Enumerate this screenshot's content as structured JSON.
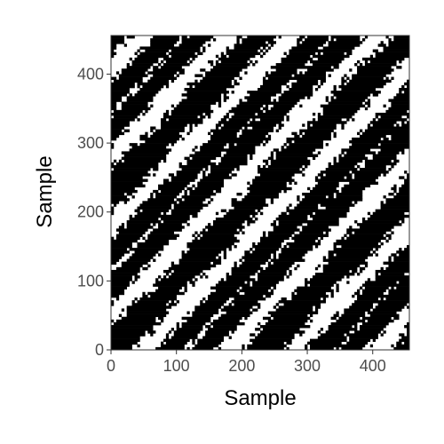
{
  "chart_data": {
    "type": "heatmap",
    "title": "",
    "xlabel": "Sample",
    "ylabel": "Sample",
    "xlim": [
      0,
      456
    ],
    "ylim": [
      0,
      456
    ],
    "xticks": [
      0,
      100,
      200,
      300,
      400
    ],
    "yticks": [
      0,
      100,
      200,
      300,
      400
    ],
    "xtick_labels": [
      "0",
      "100",
      "200",
      "300",
      "400"
    ],
    "ytick_labels": [
      "0",
      "100",
      "200",
      "300",
      "400"
    ],
    "value_colors": {
      "0": "#ffffff",
      "1": "#000000"
    },
    "description_of_structure": "binary recurrence plot, symmetric about diagonal",
    "period_samples": 228,
    "diagonal_band_halfwidth": 30,
    "cross_band_center_offset": 90,
    "cross_band_halfwidth": 22,
    "grid": false,
    "legend": "none"
  }
}
